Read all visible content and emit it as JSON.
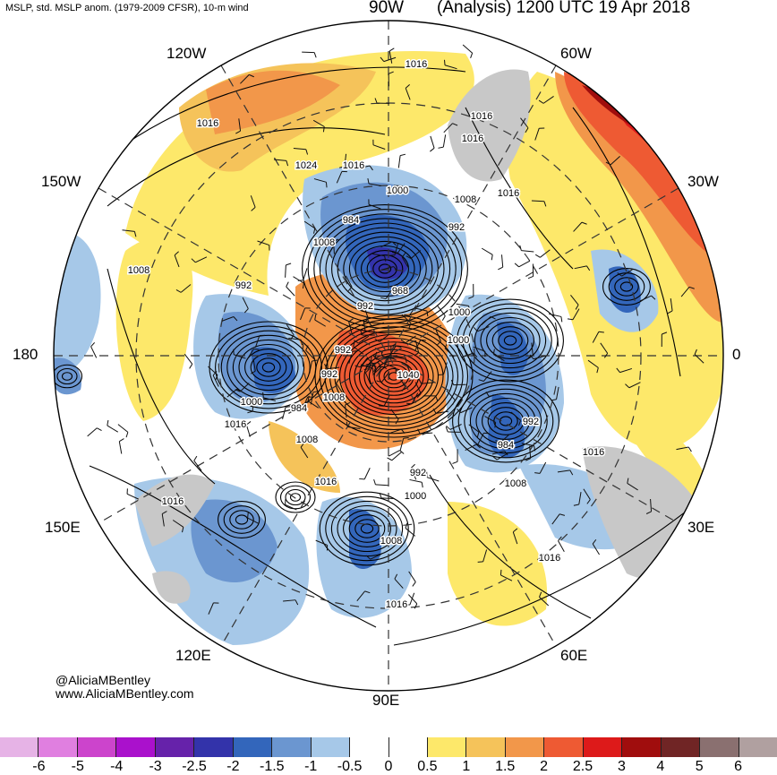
{
  "header": {
    "left": "MSLP, std. MSLP anom. (1979-2009 CFSR), 10-m wind",
    "center": "90W",
    "right": "(Analysis) 1200 UTC 19 Apr 2018"
  },
  "credit": {
    "handle": "@AliciaMBentley",
    "site": "www.AliciaMBentley.com"
  },
  "longitude_labels": {
    "n120w": "120W",
    "n60w": "60W",
    "n150w": "150W",
    "n30w": "30W",
    "w180": "180",
    "e0": "0",
    "s150e": "150E",
    "s30e": "30E",
    "s120e": "120E",
    "s60e": "60E",
    "s90e": "90E"
  },
  "isobar_labels": [
    "1016",
    "1016",
    "1016",
    "1016",
    "1024",
    "1016",
    "1000",
    "1008",
    "984",
    "992",
    "1008",
    "968",
    "1016",
    "1008",
    "992",
    "1000",
    "992",
    "1000",
    "992",
    "1040",
    "1008",
    "992",
    "1000",
    "984",
    "1016",
    "1008",
    "1016",
    "992",
    "984",
    "1016",
    "1008",
    "992",
    "1000",
    "1016",
    "1008",
    "1016",
    "1016"
  ],
  "colorbar": {
    "colors": [
      "#e6b3e6",
      "#e07fe0",
      "#cc44cc",
      "#aa11cc",
      "#6622aa",
      "#3333aa",
      "#3366bb",
      "#6b96d0",
      "#a6c8e8",
      "#ffffff",
      "#ffffff",
      "#fde86a",
      "#f5c35a",
      "#f2974a",
      "#ee5a33",
      "#dd1a1a",
      "#a00d0d",
      "#702525",
      "#8a7070",
      "#b0a0a0"
    ],
    "ticks": [
      "-6",
      "-5",
      "-4",
      "-3",
      "-2.5",
      "-2",
      "-1.5",
      "-1",
      "-0.5",
      "0",
      "0.5",
      "1",
      "1.5",
      "2",
      "2.5",
      "3",
      "4",
      "5",
      "6"
    ]
  },
  "anomaly_colors": {
    "pos1": "#fde86a",
    "pos2": "#f5c35a",
    "pos3": "#f2974a",
    "pos4": "#ee5a33",
    "pos5": "#dd1a1a",
    "pos6": "#a00d0d",
    "neg1": "#a6c8e8",
    "neg2": "#6b96d0",
    "neg3": "#3366bb",
    "neg4": "#3333aa",
    "land_gray": "#c8c8c8"
  }
}
